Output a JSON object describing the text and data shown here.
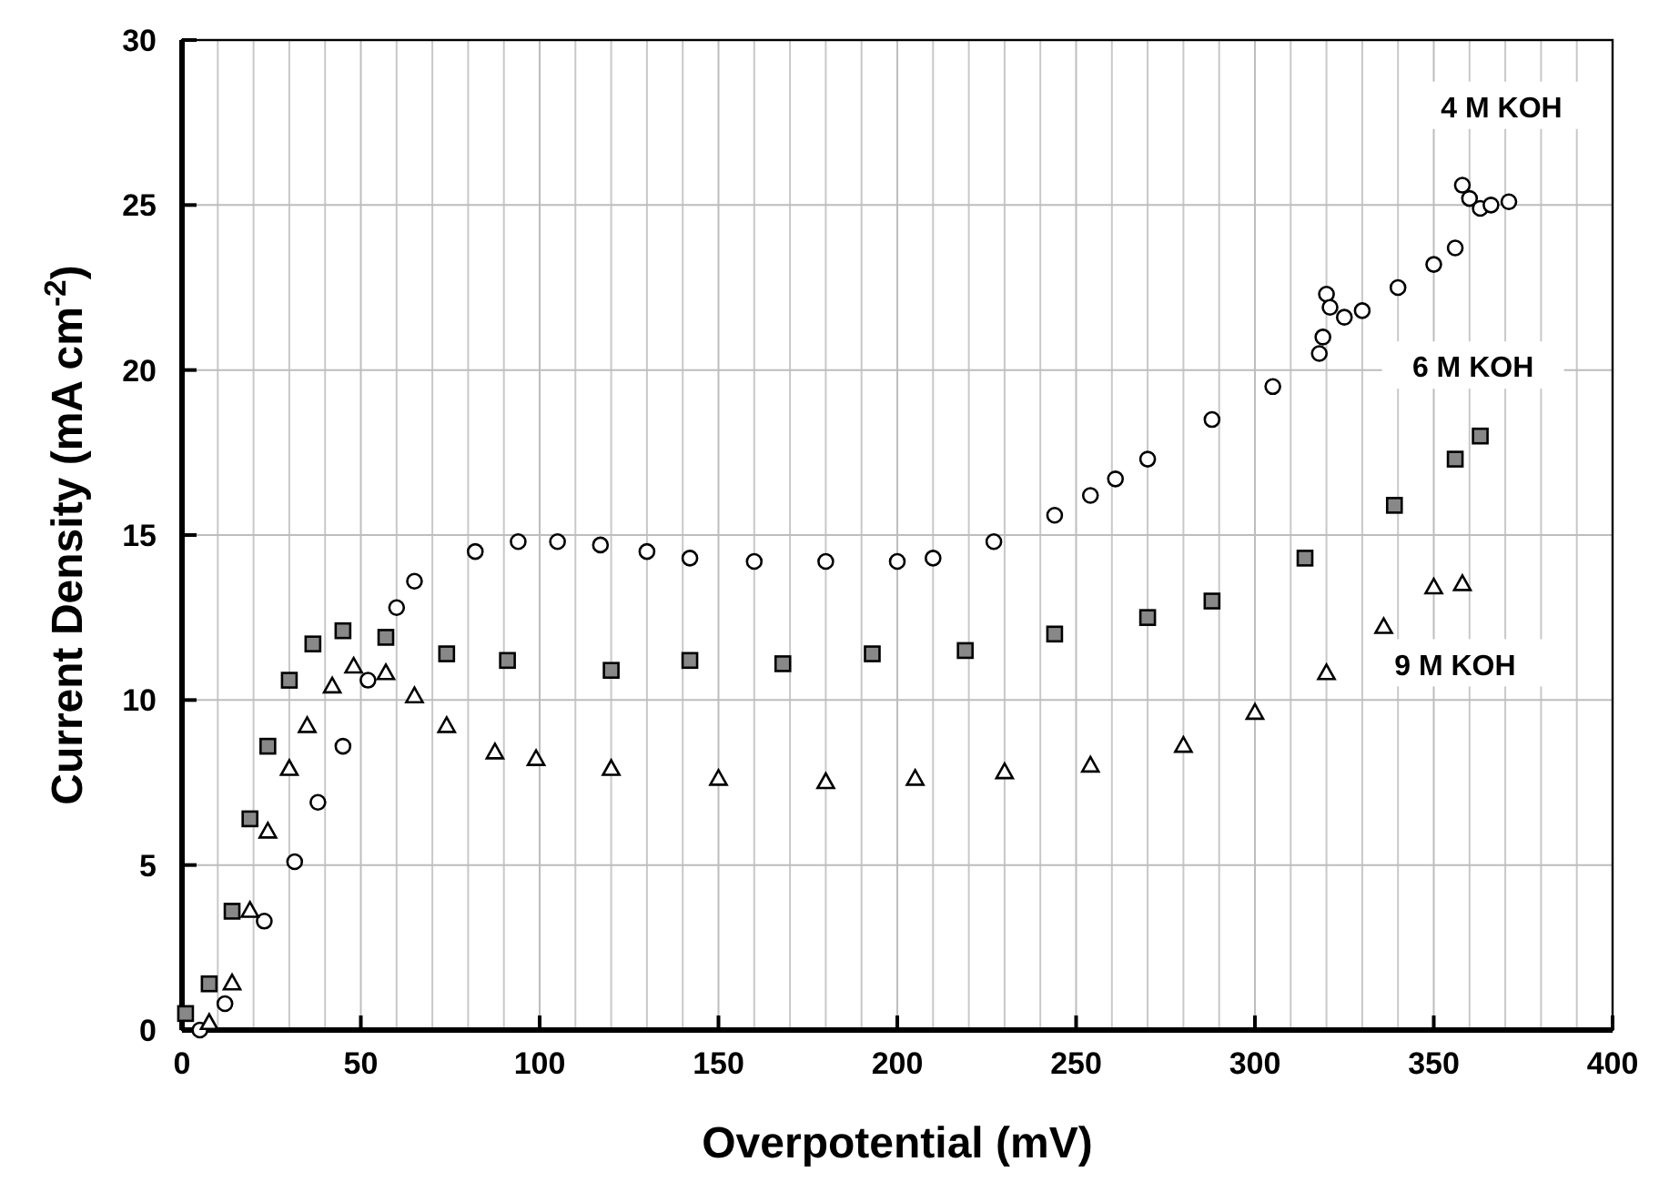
{
  "chart_data": {
    "type": "scatter",
    "xlabel": "Overpotential (mV)",
    "ylabel": "Current Density (mA cm$^{-2}$)",
    "xlim": [
      0,
      400
    ],
    "ylim": [
      0,
      30
    ],
    "xticks": [
      0,
      50,
      100,
      150,
      200,
      250,
      300,
      350,
      400
    ],
    "yticks": [
      0,
      5,
      10,
      15,
      20,
      25,
      30
    ],
    "grid": true,
    "series": [
      {
        "name": "4 M KOH",
        "color": "#000000",
        "marker": "circle",
        "x": [
          5,
          12,
          23,
          31.5,
          38,
          45,
          52,
          60,
          65,
          82,
          94,
          105,
          117,
          130,
          142,
          160,
          180,
          200,
          210,
          227,
          244,
          254,
          261,
          270,
          288,
          305,
          318,
          319,
          320,
          321,
          325,
          330,
          340,
          350,
          356,
          358,
          360,
          363,
          366,
          371
        ],
        "values": [
          0,
          0.8,
          3.3,
          5.1,
          6.9,
          8.6,
          10.6,
          12.8,
          13.6,
          14.5,
          14.8,
          14.8,
          14.7,
          14.5,
          14.3,
          14.2,
          14.2,
          14.2,
          14.3,
          14.8,
          15.6,
          16.2,
          16.7,
          17.3,
          18.5,
          19.5,
          20.5,
          21.0,
          22.3,
          21.9,
          21.6,
          21.8,
          22.5,
          23.2,
          23.7,
          25.6,
          25.2,
          24.9,
          25.0,
          25.1
        ]
      },
      {
        "name": "6 M KOH",
        "color": "#000000",
        "marker": "square",
        "x": [
          1,
          7.6,
          14,
          19,
          24,
          30,
          36.6,
          45,
          57,
          74,
          91,
          120,
          142,
          168,
          193,
          219,
          244,
          270,
          288,
          314,
          339,
          356,
          363
        ],
        "values": [
          0.5,
          1.4,
          3.6,
          6.4,
          8.6,
          10.6,
          11.7,
          12.1,
          11.9,
          11.4,
          11.2,
          10.9,
          11.2,
          11.1,
          11.4,
          11.5,
          12.0,
          12.5,
          13.0,
          14.3,
          15.9,
          17.3,
          18.0
        ]
      },
      {
        "name": "9 M KOH",
        "color": "#000000",
        "marker": "triangle",
        "x": [
          7.6,
          14,
          19,
          24,
          30,
          35,
          42,
          48,
          57,
          65,
          74,
          87.5,
          99,
          120,
          150,
          180,
          205,
          230,
          254,
          280,
          300,
          320,
          336,
          350,
          358
        ],
        "values": [
          0.2,
          1.4,
          3.6,
          6.0,
          7.9,
          9.2,
          10.4,
          11.0,
          10.8,
          10.1,
          9.2,
          8.4,
          8.2,
          7.9,
          7.6,
          7.5,
          7.6,
          7.8,
          8.0,
          8.6,
          9.6,
          10.8,
          12.2,
          13.4,
          13.5
        ]
      }
    ]
  }
}
